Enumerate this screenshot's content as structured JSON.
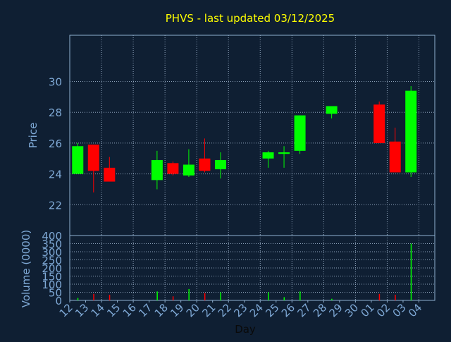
{
  "chart_data": [
    {
      "type": "candlestick",
      "title": "PHVS - last updated 03/12/2025",
      "ylabel": "Price",
      "xlabel": "",
      "ylim": [
        20,
        33
      ],
      "y_ticks": [
        22,
        24,
        26,
        28,
        30
      ],
      "grid": true,
      "colors": {
        "up": "#00ff00",
        "down": "#ff0000",
        "title": "#ffff00",
        "axis_text": "#7fa9d6",
        "frame": "#8fb0d0",
        "grid": "#8fa4bc",
        "background": "#0f1f33",
        "plot_background": "#0f1f33"
      },
      "categories": [
        "12",
        "13",
        "14",
        "15",
        "16",
        "17",
        "18",
        "19",
        "20",
        "21",
        "22",
        "23",
        "24",
        "25",
        "26",
        "27",
        "28",
        "29",
        "30",
        "01",
        "02",
        "03",
        "04"
      ],
      "candles": [
        {
          "day": "12",
          "open": 24.0,
          "high": 26.0,
          "low": 24.0,
          "close": 25.8
        },
        {
          "day": "13",
          "open": 25.9,
          "high": 25.9,
          "low": 22.8,
          "close": 24.2
        },
        {
          "day": "14",
          "open": 24.4,
          "high": 25.1,
          "low": 23.5,
          "close": 23.5
        },
        {
          "day": "17",
          "open": 23.6,
          "high": 25.5,
          "low": 23.0,
          "close": 24.9
        },
        {
          "day": "18",
          "open": 24.7,
          "high": 24.8,
          "low": 23.9,
          "close": 24.0
        },
        {
          "day": "19",
          "open": 23.9,
          "high": 25.6,
          "low": 23.8,
          "close": 24.6
        },
        {
          "day": "20",
          "open": 25.0,
          "high": 26.3,
          "low": 24.1,
          "close": 24.2
        },
        {
          "day": "21",
          "open": 24.3,
          "high": 25.4,
          "low": 23.7,
          "close": 24.9
        },
        {
          "day": "24",
          "open": 25.0,
          "high": 25.5,
          "low": 24.4,
          "close": 25.4
        },
        {
          "day": "25",
          "open": 25.3,
          "high": 25.8,
          "low": 24.4,
          "close": 25.4
        },
        {
          "day": "26",
          "open": 25.5,
          "high": 27.8,
          "low": 25.3,
          "close": 27.8
        },
        {
          "day": "28",
          "open": 27.9,
          "high": 28.4,
          "low": 27.6,
          "close": 28.4
        },
        {
          "day": "01",
          "open": 28.5,
          "high": 28.7,
          "low": 26.0,
          "close": 26.0
        },
        {
          "day": "02",
          "open": 26.1,
          "high": 27.0,
          "low": 24.1,
          "close": 24.1
        },
        {
          "day": "03",
          "open": 24.1,
          "high": 29.7,
          "low": 23.8,
          "close": 29.4
        }
      ]
    },
    {
      "type": "bar",
      "ylabel": "Volume (0000)",
      "xlabel": "Day",
      "ylim": [
        0,
        400
      ],
      "y_ticks": [
        0,
        50,
        100,
        150,
        200,
        250,
        300,
        350,
        400
      ],
      "grid": true,
      "categories": [
        "12",
        "13",
        "14",
        "15",
        "16",
        "17",
        "18",
        "19",
        "20",
        "21",
        "22",
        "23",
        "24",
        "25",
        "26",
        "27",
        "28",
        "29",
        "30",
        "01",
        "02",
        "03",
        "04"
      ],
      "bars": [
        {
          "day": "12",
          "value": 15,
          "direction": "up"
        },
        {
          "day": "13",
          "value": 40,
          "direction": "down"
        },
        {
          "day": "14",
          "value": 35,
          "direction": "down"
        },
        {
          "day": "17",
          "value": 55,
          "direction": "up"
        },
        {
          "day": "18",
          "value": 25,
          "direction": "down"
        },
        {
          "day": "19",
          "value": 70,
          "direction": "up"
        },
        {
          "day": "20",
          "value": 45,
          "direction": "down"
        },
        {
          "day": "21",
          "value": 50,
          "direction": "up"
        },
        {
          "day": "24",
          "value": 50,
          "direction": "up"
        },
        {
          "day": "25",
          "value": 20,
          "direction": "up"
        },
        {
          "day": "26",
          "value": 55,
          "direction": "up"
        },
        {
          "day": "28",
          "value": 10,
          "direction": "up"
        },
        {
          "day": "01",
          "value": 40,
          "direction": "down"
        },
        {
          "day": "02",
          "value": 35,
          "direction": "down"
        },
        {
          "day": "03",
          "value": 350,
          "direction": "up"
        }
      ]
    }
  ]
}
